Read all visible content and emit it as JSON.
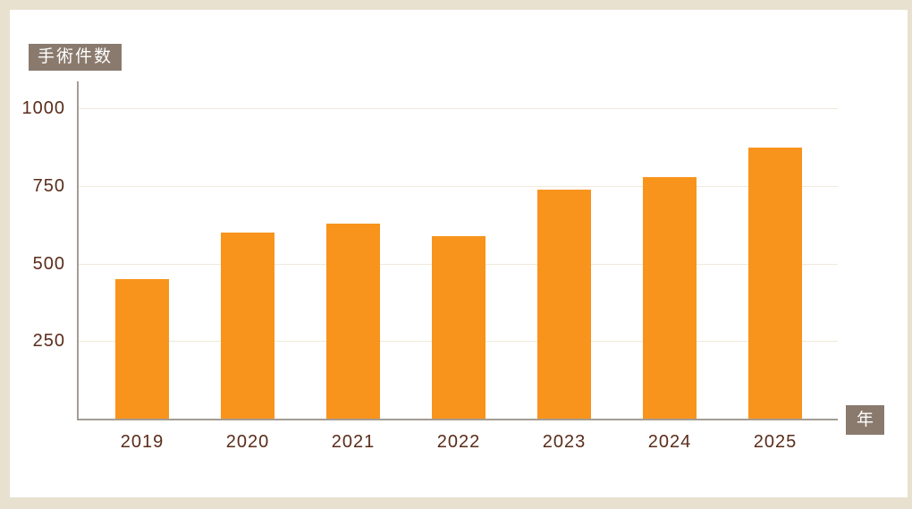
{
  "page": {
    "background_color": "#e8e1d0",
    "card_color": "#ffffff"
  },
  "chart_data": {
    "type": "bar",
    "title": "手術件数",
    "xlabel": "年",
    "ylabel": "手術件数",
    "categories": [
      "2019",
      "2020",
      "2021",
      "2022",
      "2023",
      "2024",
      "2025"
    ],
    "values": [
      450,
      600,
      630,
      590,
      740,
      780,
      875
    ],
    "yticks": [
      250,
      500,
      750,
      1000
    ],
    "ylim": [
      0,
      1090
    ],
    "grid": true,
    "legend": "none",
    "colors": {
      "bar": "#f8941c",
      "badge_background": "#8a7a6e",
      "badge_text": "#ffffff",
      "tick_text": "#5a2c1a",
      "gridline": "#f1e9da",
      "axis_line": "#a49c94"
    }
  }
}
